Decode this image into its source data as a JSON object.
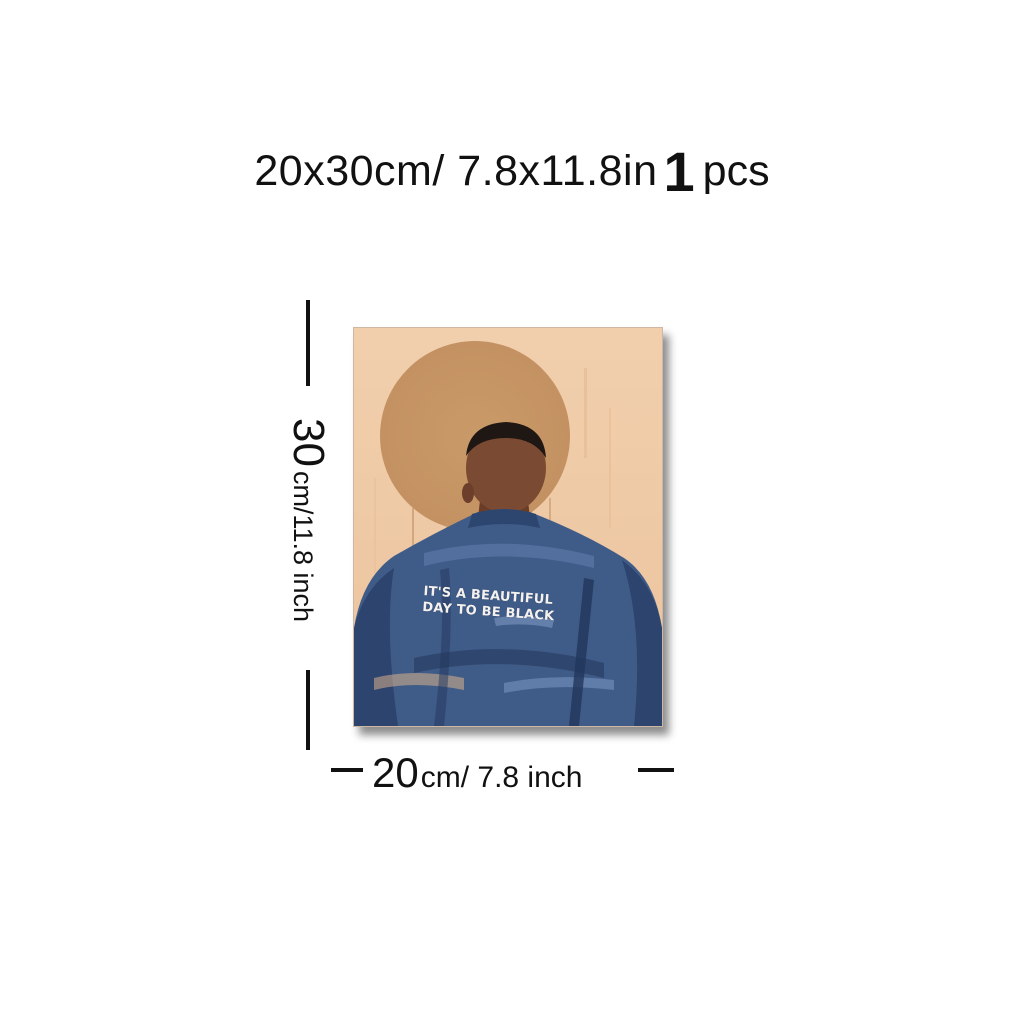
{
  "title": {
    "size_text": "20x30cm/ 7.8x11.8in",
    "count": "1",
    "count_unit": "pcs"
  },
  "poster": {
    "jacket_text_line1": "IT'S A BEAUTIFUL",
    "jacket_text_line2": "DAY TO BE BLACK",
    "colors": {
      "background": "#efc9a6",
      "sun": "#c99b6c",
      "jacket": "#3e5a86",
      "jacket_dark": "#243a63",
      "skin": "#7a4a32",
      "hair": "#1f1714"
    }
  },
  "dimensions": {
    "height_value": "30",
    "height_unit": "cm/11.8 inch",
    "width_value": "20",
    "width_unit": "cm/ 7.8 inch"
  }
}
